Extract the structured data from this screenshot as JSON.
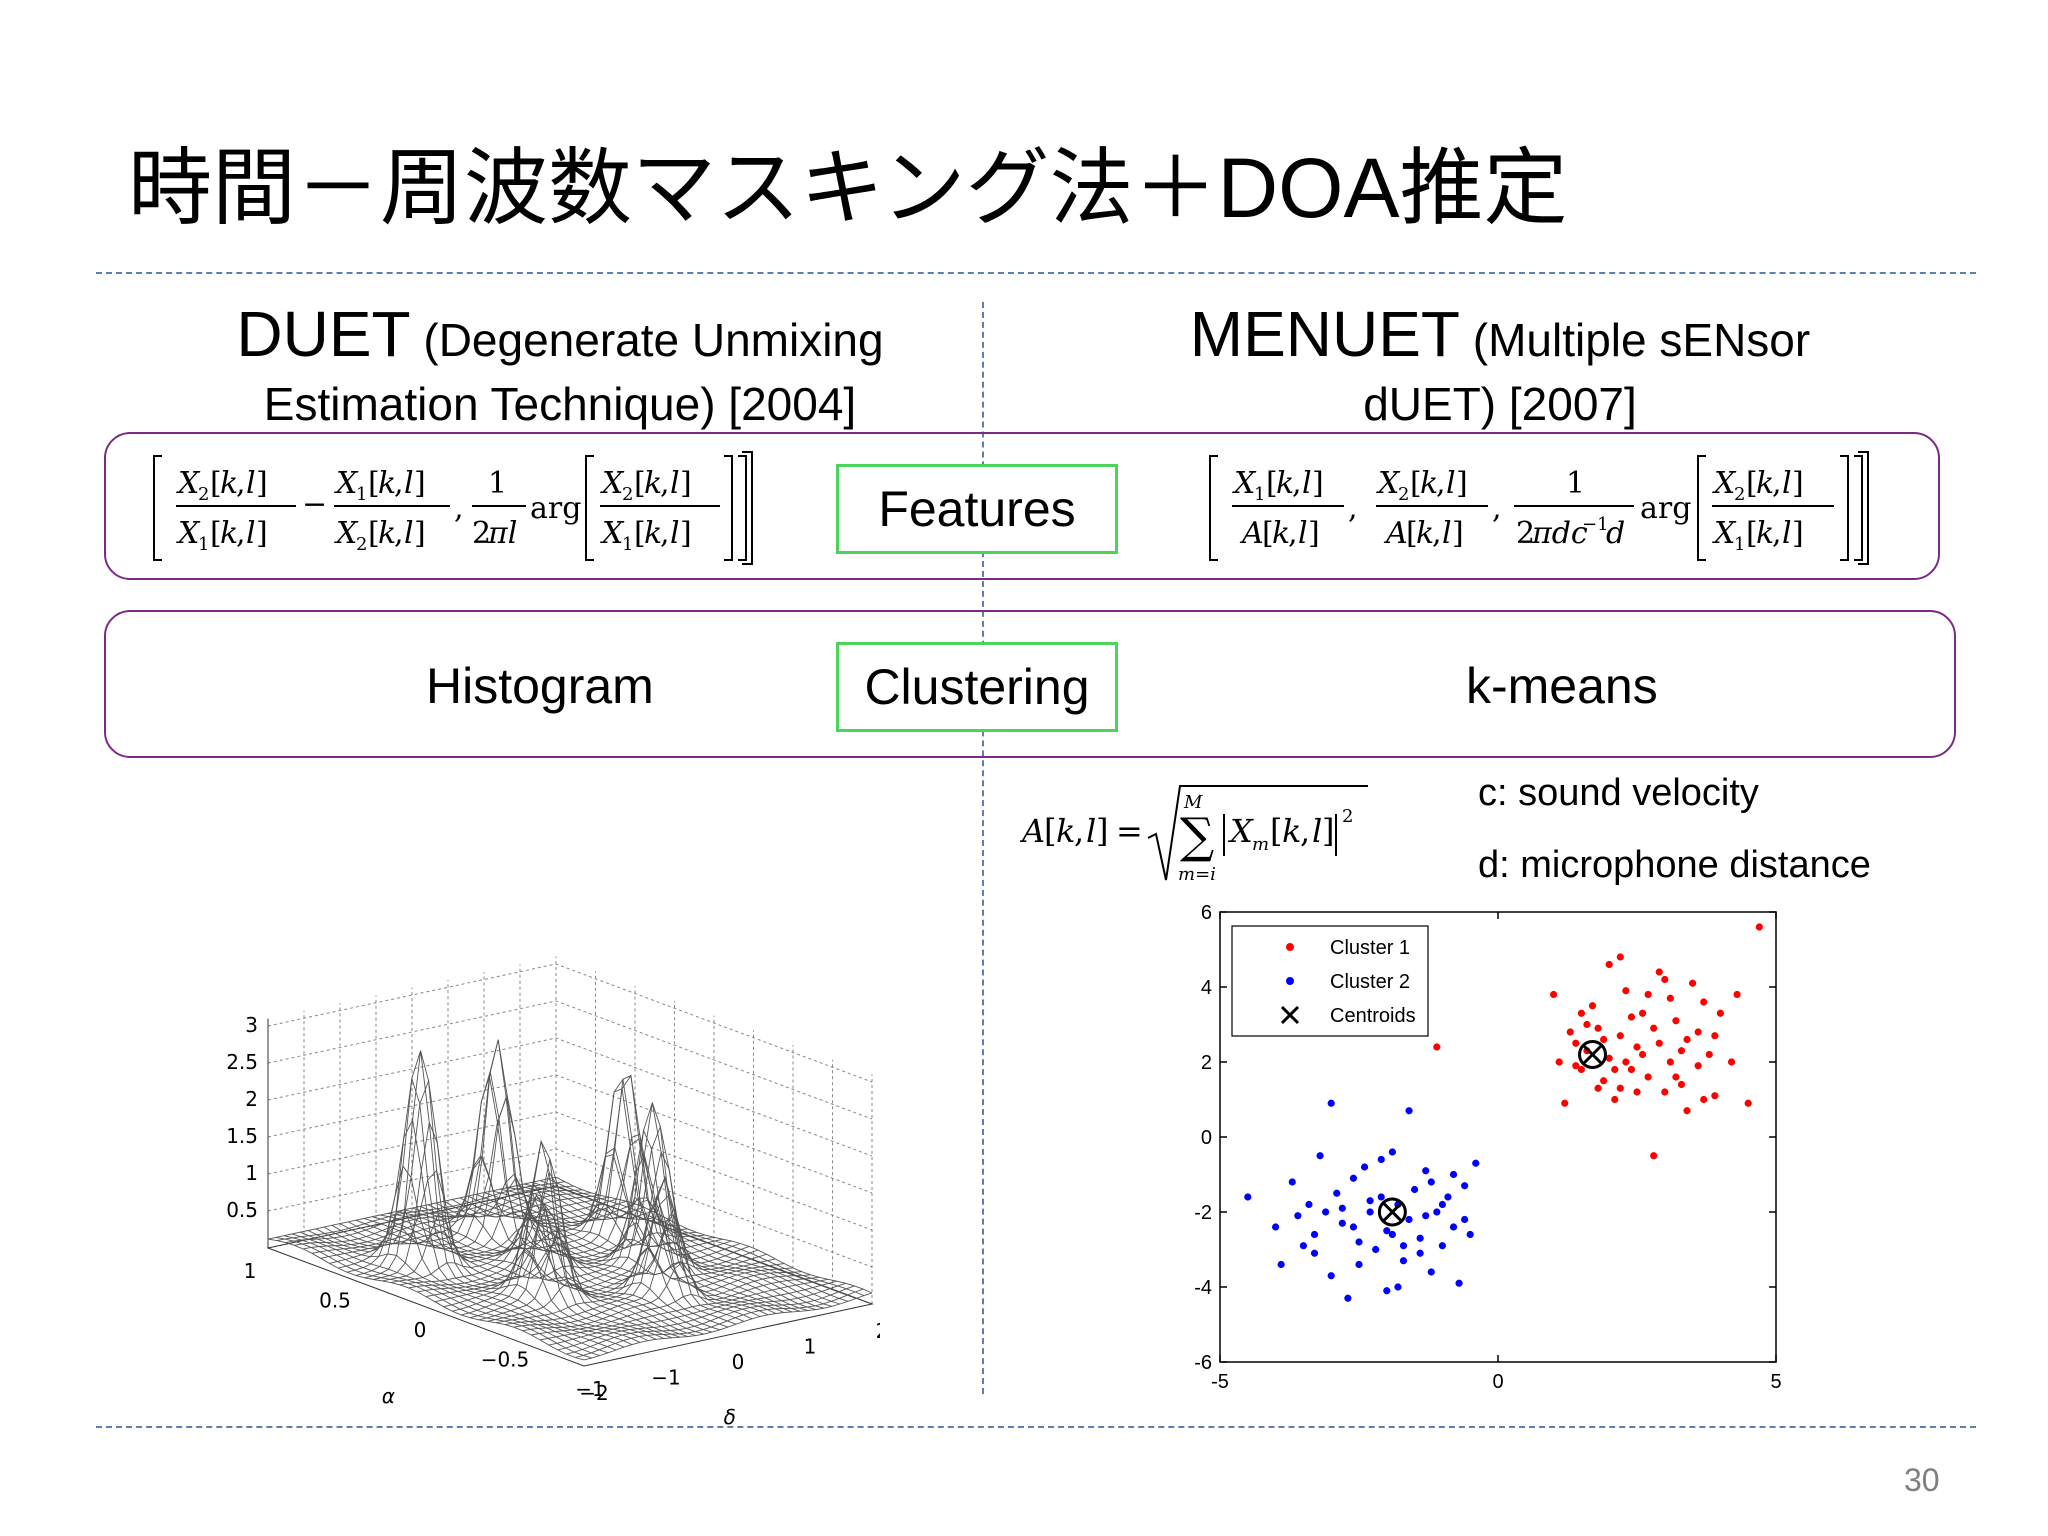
{
  "title": "時間－周波数マスキング法＋DOA推定",
  "page_number": "30",
  "duet": {
    "name": "DUET",
    "desc_line1": "(Degenerate Unmixing",
    "desc_line2": "Estimation Technique) [2004]",
    "cluster_method": "Histogram"
  },
  "menuet": {
    "name": "MENUET",
    "desc_line1": "(Multiple sENsor",
    "desc_line2": "dUET) [2007]",
    "cluster_method": "k-means"
  },
  "rows": {
    "features_label": "Features",
    "clustering_label": "Clustering"
  },
  "notes": {
    "c": "c: sound velocity",
    "d": "d: microphone distance"
  },
  "histogram_axes": {
    "z_ticks": [
      "3",
      "2.5",
      "2",
      "1.5",
      "1",
      "0.5"
    ],
    "alpha_ticks": [
      "1",
      "0.5",
      "0",
      "−0.5",
      "−1"
    ],
    "delta_ticks": [
      "−2",
      "−1",
      "0",
      "1",
      "2"
    ],
    "alpha_label": "α",
    "delta_label": "δ"
  },
  "chart_data": {
    "type": "scatter",
    "xlim": [
      -5,
      5
    ],
    "ylim": [
      -6,
      6
    ],
    "x_ticks": [
      "-5",
      "0",
      "5"
    ],
    "y_ticks": [
      "6",
      "4",
      "2",
      "0",
      "-2",
      "-4",
      "-6"
    ],
    "legend_placement": "top-left",
    "grid": false,
    "series": [
      {
        "name": "Cluster 1",
        "color": "#ff0000",
        "points": [
          [
            1.0,
            3.8
          ],
          [
            1.1,
            2.0
          ],
          [
            1.2,
            0.9
          ],
          [
            1.3,
            2.8
          ],
          [
            1.4,
            2.5
          ],
          [
            1.5,
            1.8
          ],
          [
            1.6,
            2.3
          ],
          [
            1.7,
            3.5
          ],
          [
            1.8,
            2.9
          ],
          [
            1.9,
            1.5
          ],
          [
            2.0,
            2.1
          ],
          [
            2.1,
            1.0
          ],
          [
            2.2,
            2.7
          ],
          [
            2.3,
            3.9
          ],
          [
            2.4,
            1.8
          ],
          [
            2.5,
            2.4
          ],
          [
            2.6,
            3.3
          ],
          [
            2.7,
            1.6
          ],
          [
            2.8,
            2.9
          ],
          [
            2.9,
            4.4
          ],
          [
            3.0,
            1.2
          ],
          [
            3.1,
            2.0
          ],
          [
            3.2,
            3.1
          ],
          [
            3.3,
            1.4
          ],
          [
            3.4,
            2.6
          ],
          [
            3.5,
            4.1
          ],
          [
            3.6,
            1.9
          ],
          [
            3.7,
            3.6
          ],
          [
            3.8,
            2.2
          ],
          [
            3.9,
            1.1
          ],
          [
            4.0,
            3.3
          ],
          [
            4.2,
            2.0
          ],
          [
            4.5,
            0.9
          ],
          [
            4.7,
            5.6
          ],
          [
            2.4,
            3.2
          ],
          [
            2.2,
            1.3
          ],
          [
            1.9,
            2.6
          ],
          [
            2.6,
            2.2
          ],
          [
            3.1,
            3.7
          ],
          [
            2.0,
            4.6
          ],
          [
            3.4,
            0.7
          ],
          [
            2.8,
            -0.5
          ],
          [
            1.6,
            3.0
          ],
          [
            2.9,
            2.5
          ],
          [
            3.6,
            2.8
          ],
          [
            2.5,
            1.2
          ],
          [
            3.9,
            2.7
          ],
          [
            2.3,
            2.0
          ],
          [
            1.4,
            1.9
          ],
          [
            3.2,
            1.6
          ],
          [
            2.1,
            1.8
          ],
          [
            4.3,
            3.8
          ],
          [
            3.0,
            4.2
          ],
          [
            1.8,
            1.3
          ],
          [
            2.7,
            3.8
          ],
          [
            3.7,
            1.0
          ],
          [
            -1.1,
            2.4
          ],
          [
            2.2,
            4.8
          ],
          [
            1.5,
            3.3
          ],
          [
            3.3,
            2.3
          ]
        ]
      },
      {
        "name": "Cluster 2",
        "color": "#0000ff",
        "points": [
          [
            -4.5,
            -1.6
          ],
          [
            -4.0,
            -2.4
          ],
          [
            -3.9,
            -3.4
          ],
          [
            -3.7,
            -1.2
          ],
          [
            -3.6,
            -2.1
          ],
          [
            -3.5,
            -2.9
          ],
          [
            -3.4,
            -1.8
          ],
          [
            -3.3,
            -2.6
          ],
          [
            -3.2,
            -0.5
          ],
          [
            -3.1,
            -2.0
          ],
          [
            -3.0,
            -3.7
          ],
          [
            -2.9,
            -1.5
          ],
          [
            -2.8,
            -2.3
          ],
          [
            -2.7,
            -4.3
          ],
          [
            -2.6,
            -1.1
          ],
          [
            -2.5,
            -2.8
          ],
          [
            -2.4,
            -0.8
          ],
          [
            -2.3,
            -2.0
          ],
          [
            -2.2,
            -3.0
          ],
          [
            -2.1,
            -1.6
          ],
          [
            -2.0,
            -2.5
          ],
          [
            -1.9,
            -0.4
          ],
          [
            -1.8,
            -1.8
          ],
          [
            -1.7,
            -3.3
          ],
          [
            -1.6,
            -2.2
          ],
          [
            -1.5,
            -1.4
          ],
          [
            -1.4,
            -2.7
          ],
          [
            -1.3,
            -0.9
          ],
          [
            -1.2,
            -3.6
          ],
          [
            -1.1,
            -2.0
          ],
          [
            -1.0,
            -2.9
          ],
          [
            -0.9,
            -1.6
          ],
          [
            -0.8,
            -2.4
          ],
          [
            -0.7,
            -3.9
          ],
          [
            -0.6,
            -1.3
          ],
          [
            -0.5,
            -2.6
          ],
          [
            -0.4,
            -0.7
          ],
          [
            -3.0,
            0.9
          ],
          [
            -2.3,
            -1.7
          ],
          [
            -2.0,
            -4.1
          ],
          [
            -1.6,
            0.7
          ],
          [
            -1.4,
            -3.1
          ],
          [
            -2.8,
            -1.9
          ],
          [
            -1.9,
            -2.6
          ],
          [
            -1.2,
            -1.2
          ],
          [
            -0.8,
            -1.0
          ],
          [
            -2.5,
            -3.4
          ],
          [
            -1.7,
            -2.9
          ],
          [
            -3.3,
            -3.1
          ],
          [
            -2.1,
            -0.6
          ],
          [
            -0.6,
            -2.2
          ],
          [
            -1.0,
            -1.8
          ],
          [
            -2.6,
            -2.4
          ],
          [
            -1.3,
            -2.1
          ],
          [
            -1.8,
            -4.0
          ]
        ]
      }
    ],
    "centroids": [
      [
        1.7,
        2.2
      ],
      [
        -1.9,
        -2.0
      ]
    ],
    "legend_entries": [
      "Cluster 1",
      "Cluster 2",
      "Centroids"
    ]
  }
}
